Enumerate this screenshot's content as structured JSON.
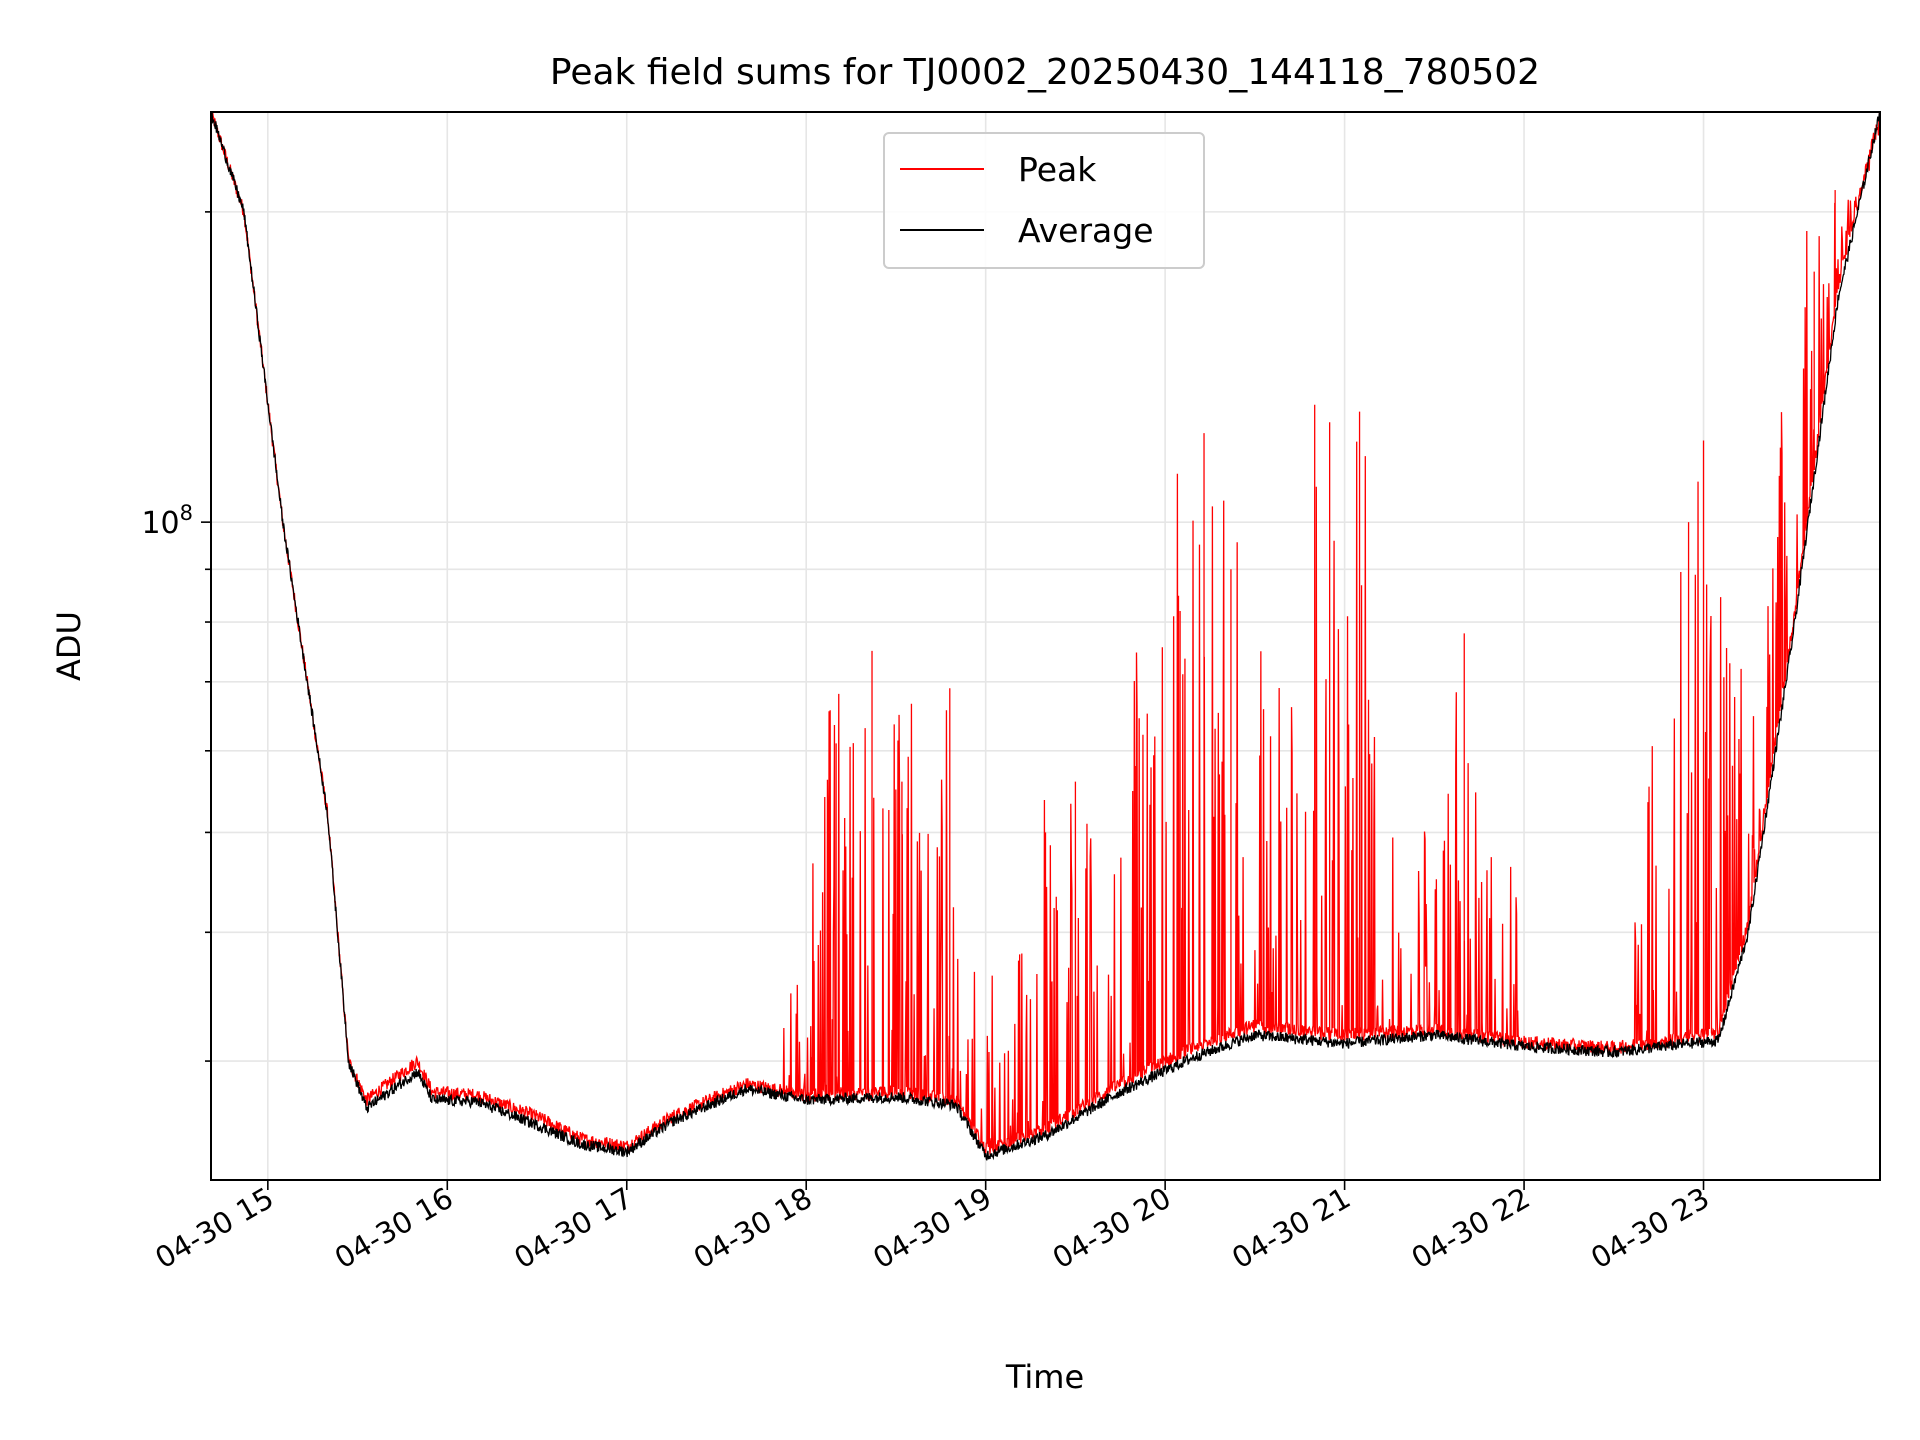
{
  "chart_data": {
    "type": "line",
    "title": "Peak field sums for TJ0002_20250430_144118_780502",
    "xlabel": "Time",
    "ylabel": "ADU",
    "yscale": "log",
    "grid": true,
    "legend_position": "upper center",
    "x_ticks": [
      "04-30 15",
      "04-30 16",
      "04-30 17",
      "04-30 18",
      "04-30 19",
      "04-30 20",
      "04-30 21",
      "04-30 22",
      "04-30 23"
    ],
    "y_major_tick": "10^8",
    "x_range": [
      "2025-04-30 14:41",
      "2025-04-30 23:59"
    ],
    "ylim": [
      23000000,
      250000000
    ],
    "series": [
      {
        "name": "Peak",
        "color": "#ff0000",
        "style": "thin line with frequent upward spikes, strongest 19:30–21:00 and 22:50–23:40",
        "points": [
          [
            "2025-04-30 14:41",
            250000000
          ],
          [
            "2025-04-30 14:52",
            200000000
          ],
          [
            "2025-04-30 15:05",
            100000000
          ],
          [
            "2025-04-30 15:20",
            52000000
          ],
          [
            "2025-04-30 15:27",
            30000000
          ],
          [
            "2025-04-30 15:33",
            27500000
          ],
          [
            "2025-04-30 15:50",
            30000000
          ],
          [
            "2025-04-30 15:55",
            28000000
          ],
          [
            "2025-04-30 16:10",
            27800000
          ],
          [
            "2025-04-30 16:30",
            26500000
          ],
          [
            "2025-04-30 16:45",
            25200000
          ],
          [
            "2025-04-30 17:00",
            24800000
          ],
          [
            "2025-04-30 17:15",
            26500000
          ],
          [
            "2025-04-30 17:40",
            28500000
          ],
          [
            "2025-04-30 18:00",
            27800000
          ],
          [
            "2025-04-30 18:30",
            28000000
          ],
          [
            "2025-04-30 18:50",
            27500000
          ],
          [
            "2025-04-30 19:00",
            24600000
          ],
          [
            "2025-04-30 19:20",
            25800000
          ],
          [
            "2025-04-30 19:45",
            28500000
          ],
          [
            "2025-04-30 20:10",
            31000000
          ],
          [
            "2025-04-30 20:30",
            32500000
          ],
          [
            "2025-04-30 21:00",
            31800000
          ],
          [
            "2025-04-30 21:30",
            32200000
          ],
          [
            "2025-04-30 22:00",
            31300000
          ],
          [
            "2025-04-30 22:30",
            30900000
          ],
          [
            "2025-04-30 22:55",
            31600000
          ],
          [
            "2025-04-30 23:05",
            32000000
          ],
          [
            "2025-04-30 23:15",
            41000000
          ],
          [
            "2025-04-30 23:30",
            80000000
          ],
          [
            "2025-04-30 23:45",
            170000000
          ],
          [
            "2025-04-30 23:59",
            250000000
          ]
        ],
        "spikes": [
          [
            "2025-04-30 18:10",
            61000000
          ],
          [
            "2025-04-30 18:22",
            75000000
          ],
          [
            "2025-04-30 18:32",
            56000000
          ],
          [
            "2025-04-30 18:48",
            69000000
          ],
          [
            "2025-04-30 19:20",
            50000000
          ],
          [
            "2025-04-30 19:30",
            56000000
          ],
          [
            "2025-04-30 19:50",
            58000000
          ],
          [
            "2025-04-30 20:05",
            82000000
          ],
          [
            "2025-04-30 20:13",
            122000000
          ],
          [
            "2025-04-30 20:22",
            90000000
          ],
          [
            "2025-04-30 20:50",
            130000000
          ],
          [
            "2025-04-30 20:55",
            125000000
          ],
          [
            "2025-04-30 21:05",
            128000000
          ],
          [
            "2025-04-30 21:40",
            78000000
          ],
          [
            "2025-04-30 22:55",
            100000000
          ],
          [
            "2025-04-30 23:00",
            120000000
          ],
          [
            "2025-04-30 23:37",
            175000000
          ],
          [
            "2025-04-30 23:44",
            210000000
          ]
        ]
      },
      {
        "name": "Average",
        "color": "#000000",
        "style": "thin noisy line tracking the lower envelope",
        "points": [
          [
            "2025-04-30 14:41",
            250000000
          ],
          [
            "2025-04-30 14:52",
            200000000
          ],
          [
            "2025-04-30 15:05",
            100000000
          ],
          [
            "2025-04-30 15:20",
            52000000
          ],
          [
            "2025-04-30 15:27",
            30000000
          ],
          [
            "2025-04-30 15:33",
            27000000
          ],
          [
            "2025-04-30 15:50",
            29300000
          ],
          [
            "2025-04-30 15:55",
            27500000
          ],
          [
            "2025-04-30 16:10",
            27400000
          ],
          [
            "2025-04-30 16:30",
            26000000
          ],
          [
            "2025-04-30 16:45",
            24900000
          ],
          [
            "2025-04-30 17:00",
            24500000
          ],
          [
            "2025-04-30 17:15",
            26200000
          ],
          [
            "2025-04-30 17:40",
            28200000
          ],
          [
            "2025-04-30 18:00",
            27500000
          ],
          [
            "2025-04-30 18:30",
            27700000
          ],
          [
            "2025-04-30 18:50",
            27200000
          ],
          [
            "2025-04-30 19:00",
            24300000
          ],
          [
            "2025-04-30 19:20",
            25400000
          ],
          [
            "2025-04-30 19:45",
            28000000
          ],
          [
            "2025-04-30 20:10",
            30300000
          ],
          [
            "2025-04-30 20:30",
            31800000
          ],
          [
            "2025-04-30 21:00",
            31200000
          ],
          [
            "2025-04-30 21:30",
            31800000
          ],
          [
            "2025-04-30 22:00",
            31000000
          ],
          [
            "2025-04-30 22:30",
            30600000
          ],
          [
            "2025-04-30 22:55",
            31200000
          ],
          [
            "2025-04-30 23:05",
            31400000
          ],
          [
            "2025-04-30 23:15",
            40000000
          ],
          [
            "2025-04-30 23:30",
            78000000
          ],
          [
            "2025-04-30 23:45",
            165000000
          ],
          [
            "2025-04-30 23:59",
            250000000
          ]
        ]
      }
    ]
  }
}
